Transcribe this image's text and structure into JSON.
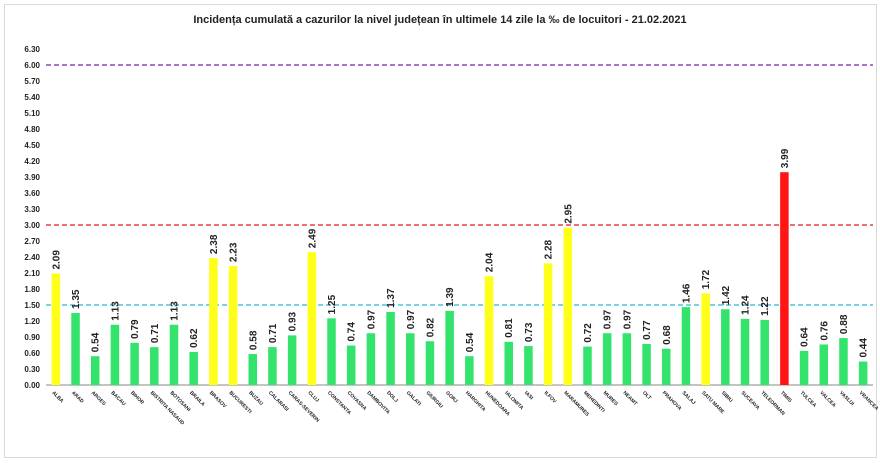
{
  "chart_data": {
    "type": "bar",
    "title": "Incidența cumulată a cazurilor la nivel județean în ultimele 14 zile la ‰ de locuitori - 21.02.2021",
    "xlabel": "",
    "ylabel": "",
    "ylim": [
      0,
      6.3
    ],
    "yticks": [
      "0.00",
      "0.30",
      "0.60",
      "0.90",
      "1.20",
      "1.50",
      "1.80",
      "2.10",
      "2.40",
      "2.70",
      "3.00",
      "3.30",
      "3.60",
      "3.90",
      "4.20",
      "4.50",
      "4.80",
      "5.10",
      "5.40",
      "5.70",
      "6.00",
      "6.30"
    ],
    "grid": false,
    "categories": [
      "ALBA",
      "ARAD",
      "ARGES",
      "BACAU",
      "BIHOR",
      "BISTRITA NASAUD",
      "BOTOSANI",
      "BRAILA",
      "BRASOV",
      "BUCURESTI",
      "BUZAU",
      "CALARASI",
      "CARAS-SEVERIN",
      "CLUJ",
      "CONSTANTA",
      "COVASNA",
      "DAMBOVITA",
      "DOLJ",
      "GALATI",
      "GIURGIU",
      "GORJ",
      "HARGHITA",
      "HUNEDOARA",
      "IALOMITA",
      "IASI",
      "ILFOV",
      "MARAMURES",
      "MEHEDINTI",
      "MURES",
      "NEAMT",
      "OLT",
      "PRAHOVA",
      "SALAJ",
      "SATU MARE",
      "SIBIU",
      "SUCEAVA",
      "TELEORMAN",
      "TIMIS",
      "TULCEA",
      "VALCEA",
      "VASLUI",
      "VRANCEA"
    ],
    "values": [
      2.09,
      1.35,
      0.54,
      1.13,
      0.79,
      0.71,
      1.13,
      0.62,
      2.38,
      2.23,
      0.58,
      0.71,
      0.93,
      2.49,
      1.25,
      0.74,
      0.97,
      1.37,
      0.97,
      0.82,
      1.39,
      0.54,
      2.04,
      0.81,
      0.73,
      2.28,
      2.95,
      0.72,
      0.97,
      0.97,
      0.77,
      0.68,
      1.46,
      1.72,
      1.42,
      1.24,
      1.22,
      3.99,
      0.64,
      0.76,
      0.88,
      0.44
    ],
    "value_labels": [
      "2.09",
      "1.35",
      "0.54",
      "1.13",
      "0.79",
      "0.71",
      "1.13",
      "0.62",
      "2.38",
      "2.23",
      "0.58",
      "0.71",
      "0.93",
      "2.49",
      "1.25",
      "0.74",
      "0.97",
      "1.37",
      "0.97",
      "0.82",
      "1.39",
      "0.54",
      "2.04",
      "0.81",
      "0.73",
      "2.28",
      "2.95",
      "0.72",
      "0.97",
      "0.97",
      "0.77",
      "0.68",
      "1.46",
      "1.72",
      "1.42",
      "1.24",
      "1.22",
      "3.99",
      "0.64",
      "0.76",
      "0.88",
      "0.44"
    ],
    "thresholds": [
      {
        "value": 1.5,
        "color": "#29b6d6"
      },
      {
        "value": 3.0,
        "color": "#e0191e"
      },
      {
        "value": 6.0,
        "color": "#7b1fa2"
      }
    ],
    "colors": {
      "low": "#33e36b",
      "mid": "#ffff19",
      "high": "#ff1515",
      "axis": "#888888"
    }
  }
}
